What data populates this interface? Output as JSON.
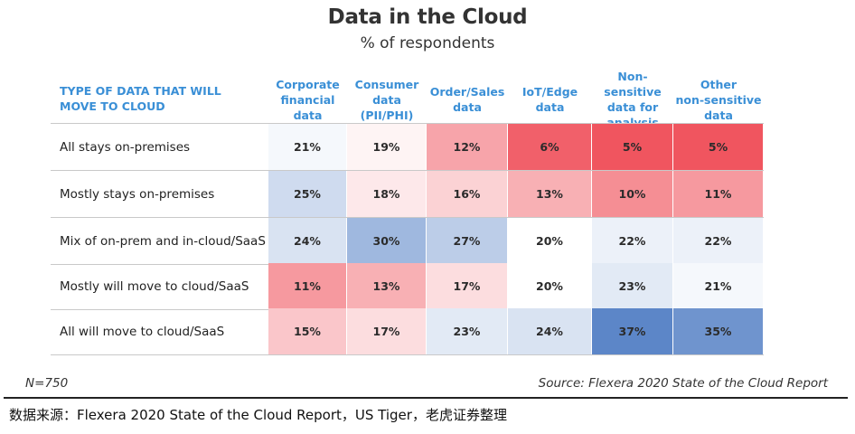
{
  "chart_data": {
    "type": "heatmap",
    "title": "Data in the Cloud",
    "subtitle": "% of respondents",
    "corner_label": "TYPE OF DATA THAT WILL MOVE TO CLOUD",
    "columns": [
      "Corporate\nfinancial\ndata",
      "Consumer\ndata\n(PII/PHI)",
      "Order/Sales\ndata",
      "IoT/Edge\ndata",
      "Non-sensitive\ndata for\nanalysis",
      "Other\nnon-sensitive\ndata"
    ],
    "rows": [
      "All stays on-premises",
      "Mostly stays on-premises",
      "Mix of on-prem and in-cloud/SaaS",
      "Mostly will move to cloud/SaaS",
      "All will move to cloud/SaaS"
    ],
    "values": [
      [
        21,
        19,
        12,
        6,
        5,
        5
      ],
      [
        25,
        18,
        16,
        13,
        10,
        11
      ],
      [
        24,
        30,
        27,
        20,
        22,
        22
      ],
      [
        11,
        13,
        17,
        20,
        23,
        21
      ],
      [
        15,
        17,
        23,
        24,
        37,
        35
      ]
    ],
    "value_suffix": "%",
    "color_scale": {
      "low": "#f0555f",
      "mid": "#ffffff",
      "high": "#5c86c8"
    },
    "footnote": "N=750",
    "source": "Source: Flexera 2020 State of the Cloud Report"
  },
  "caption": "数据来源：Flexera 2020 State of the Cloud Report，US Tiger，老虎证券整理"
}
